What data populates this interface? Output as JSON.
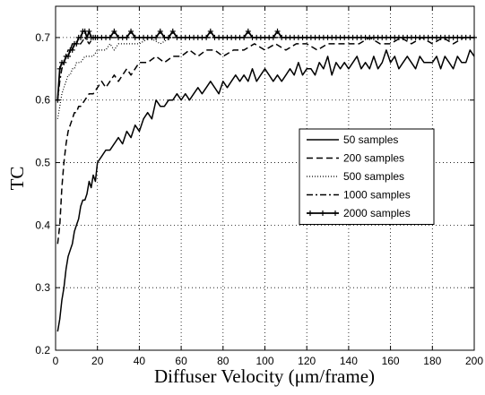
{
  "chart_data": {
    "type": "line",
    "title": "",
    "xlabel": "Diffuser Velocity (μm/frame)",
    "ylabel": "TC",
    "xlim": [
      0,
      200
    ],
    "ylim": [
      0.2,
      0.75
    ],
    "xticks": [
      "0",
      "20",
      "40",
      "60",
      "80",
      "100",
      "120",
      "140",
      "160",
      "180",
      "200"
    ],
    "yticks": [
      "0.2",
      "0.3",
      "0.4",
      "0.5",
      "0.6",
      "0.7"
    ],
    "grid": true,
    "legend_position": "right-center",
    "series": [
      {
        "name": "50 samples",
        "style": "solid",
        "x": [
          1,
          2,
          3,
          4,
          5,
          6,
          7,
          8,
          9,
          10,
          11,
          12,
          13,
          14,
          15,
          16,
          17,
          18,
          19,
          20,
          22,
          24,
          26,
          28,
          30,
          32,
          34,
          36,
          38,
          40,
          42,
          44,
          46,
          48,
          50,
          52,
          54,
          56,
          58,
          60,
          62,
          64,
          66,
          68,
          70,
          72,
          74,
          76,
          78,
          80,
          82,
          84,
          86,
          88,
          90,
          92,
          94,
          96,
          98,
          100,
          102,
          104,
          106,
          108,
          110,
          112,
          114,
          116,
          118,
          120,
          122,
          124,
          126,
          128,
          130,
          132,
          134,
          136,
          138,
          140,
          142,
          144,
          146,
          148,
          150,
          152,
          154,
          156,
          158,
          160,
          162,
          164,
          166,
          168,
          170,
          172,
          174,
          176,
          178,
          180,
          182,
          184,
          186,
          188,
          190,
          192,
          194,
          196,
          198,
          200
        ],
        "y": [
          0.23,
          0.25,
          0.28,
          0.3,
          0.33,
          0.35,
          0.36,
          0.37,
          0.39,
          0.4,
          0.41,
          0.43,
          0.44,
          0.44,
          0.45,
          0.47,
          0.46,
          0.48,
          0.47,
          0.5,
          0.51,
          0.52,
          0.52,
          0.53,
          0.54,
          0.53,
          0.55,
          0.54,
          0.56,
          0.55,
          0.57,
          0.58,
          0.57,
          0.6,
          0.59,
          0.59,
          0.6,
          0.6,
          0.61,
          0.6,
          0.61,
          0.6,
          0.61,
          0.62,
          0.61,
          0.62,
          0.63,
          0.62,
          0.61,
          0.63,
          0.62,
          0.63,
          0.64,
          0.63,
          0.64,
          0.63,
          0.65,
          0.63,
          0.64,
          0.65,
          0.64,
          0.63,
          0.64,
          0.63,
          0.64,
          0.65,
          0.64,
          0.66,
          0.64,
          0.65,
          0.65,
          0.64,
          0.66,
          0.65,
          0.67,
          0.64,
          0.66,
          0.65,
          0.66,
          0.65,
          0.66,
          0.67,
          0.65,
          0.66,
          0.65,
          0.67,
          0.65,
          0.66,
          0.68,
          0.66,
          0.67,
          0.65,
          0.66,
          0.67,
          0.66,
          0.65,
          0.67,
          0.66,
          0.66,
          0.66,
          0.67,
          0.65,
          0.67,
          0.66,
          0.65,
          0.67,
          0.66,
          0.66,
          0.68,
          0.67
        ]
      },
      {
        "name": "200 samples",
        "style": "dashed",
        "x": [
          1,
          2,
          3,
          4,
          5,
          6,
          7,
          8,
          9,
          10,
          11,
          12,
          14,
          16,
          18,
          20,
          22,
          24,
          26,
          28,
          30,
          32,
          34,
          36,
          38,
          40,
          44,
          48,
          52,
          56,
          60,
          64,
          68,
          72,
          76,
          80,
          85,
          90,
          95,
          100,
          105,
          110,
          115,
          120,
          125,
          130,
          135,
          140,
          145,
          150,
          155,
          160,
          165,
          170,
          175,
          180,
          185,
          190,
          195,
          200
        ],
        "y": [
          0.37,
          0.4,
          0.46,
          0.5,
          0.53,
          0.55,
          0.56,
          0.57,
          0.58,
          0.58,
          0.59,
          0.59,
          0.6,
          0.61,
          0.61,
          0.62,
          0.63,
          0.62,
          0.63,
          0.64,
          0.63,
          0.64,
          0.65,
          0.64,
          0.65,
          0.66,
          0.66,
          0.67,
          0.66,
          0.67,
          0.67,
          0.68,
          0.67,
          0.68,
          0.68,
          0.67,
          0.68,
          0.68,
          0.69,
          0.68,
          0.69,
          0.68,
          0.69,
          0.69,
          0.68,
          0.69,
          0.69,
          0.69,
          0.69,
          0.7,
          0.69,
          0.69,
          0.7,
          0.69,
          0.7,
          0.69,
          0.7,
          0.69,
          0.7,
          0.7
        ]
      },
      {
        "name": "500 samples",
        "style": "dotted",
        "x": [
          1,
          2,
          3,
          4,
          5,
          6,
          7,
          8,
          9,
          10,
          12,
          14,
          16,
          18,
          20,
          22,
          24,
          26,
          28,
          30,
          35,
          40,
          45,
          50,
          55,
          60,
          70,
          80,
          90,
          100,
          110,
          120,
          130,
          140,
          150,
          160,
          170,
          180,
          190,
          200
        ],
        "y": [
          0.57,
          0.59,
          0.61,
          0.62,
          0.63,
          0.64,
          0.64,
          0.65,
          0.65,
          0.66,
          0.66,
          0.67,
          0.67,
          0.67,
          0.68,
          0.68,
          0.68,
          0.69,
          0.68,
          0.69,
          0.69,
          0.69,
          0.7,
          0.69,
          0.7,
          0.7,
          0.7,
          0.7,
          0.7,
          0.7,
          0.7,
          0.7,
          0.7,
          0.7,
          0.7,
          0.7,
          0.7,
          0.7,
          0.7,
          0.7
        ]
      },
      {
        "name": "1000 samples",
        "style": "dashdot",
        "x": [
          1,
          2,
          3,
          4,
          5,
          6,
          7,
          8,
          9,
          10,
          12,
          14,
          16,
          18,
          20,
          22,
          24,
          26,
          28,
          30,
          35,
          40,
          45,
          50,
          55,
          60,
          70,
          80,
          90,
          100,
          110,
          120,
          130,
          140,
          150,
          160,
          170,
          180,
          190,
          200
        ],
        "y": [
          0.6,
          0.63,
          0.65,
          0.66,
          0.67,
          0.68,
          0.68,
          0.69,
          0.69,
          0.69,
          0.69,
          0.7,
          0.69,
          0.7,
          0.7,
          0.7,
          0.7,
          0.7,
          0.7,
          0.7,
          0.7,
          0.7,
          0.7,
          0.7,
          0.7,
          0.7,
          0.7,
          0.7,
          0.7,
          0.7,
          0.7,
          0.7,
          0.7,
          0.7,
          0.7,
          0.7,
          0.7,
          0.7,
          0.7,
          0.7
        ]
      },
      {
        "name": "2000 samples",
        "style": "solid-plus",
        "x": [
          1,
          2,
          3,
          4,
          5,
          6,
          7,
          8,
          9,
          10,
          11,
          12,
          13,
          14,
          15,
          16,
          17,
          18,
          19,
          20,
          22,
          24,
          26,
          28,
          30,
          32,
          34,
          36,
          38,
          40,
          42,
          44,
          46,
          48,
          50,
          52,
          54,
          56,
          58,
          60,
          62,
          64,
          66,
          68,
          70,
          72,
          74,
          76,
          78,
          80,
          82,
          84,
          86,
          88,
          90,
          92,
          94,
          96,
          98,
          100,
          102,
          104,
          106,
          108,
          110,
          112,
          114,
          116,
          118,
          120,
          122,
          124,
          126,
          128,
          130,
          132,
          134,
          136,
          138,
          140,
          142,
          144,
          146,
          148,
          150,
          152,
          154,
          156,
          158,
          160,
          162,
          164,
          166,
          168,
          170,
          172,
          174,
          176,
          178,
          180,
          182,
          184,
          186,
          188,
          190,
          192,
          194,
          196,
          198,
          200
        ],
        "y": [
          0.6,
          0.65,
          0.66,
          0.66,
          0.67,
          0.67,
          0.68,
          0.68,
          0.69,
          0.69,
          0.7,
          0.7,
          0.71,
          0.71,
          0.7,
          0.71,
          0.7,
          0.7,
          0.7,
          0.7,
          0.7,
          0.7,
          0.7,
          0.71,
          0.7,
          0.7,
          0.7,
          0.71,
          0.7,
          0.7,
          0.7,
          0.7,
          0.7,
          0.7,
          0.71,
          0.7,
          0.7,
          0.71,
          0.7,
          0.7,
          0.7,
          0.7,
          0.7,
          0.7,
          0.7,
          0.7,
          0.71,
          0.7,
          0.7,
          0.7,
          0.7,
          0.7,
          0.7,
          0.7,
          0.7,
          0.71,
          0.7,
          0.7,
          0.7,
          0.7,
          0.7,
          0.7,
          0.71,
          0.7,
          0.7,
          0.7,
          0.7,
          0.7,
          0.7,
          0.7,
          0.7,
          0.7,
          0.7,
          0.7,
          0.7,
          0.7,
          0.7,
          0.7,
          0.7,
          0.7,
          0.7,
          0.7,
          0.7,
          0.7,
          0.7,
          0.7,
          0.7,
          0.7,
          0.7,
          0.7,
          0.7,
          0.7,
          0.7,
          0.7,
          0.7,
          0.7,
          0.7,
          0.7,
          0.7,
          0.7,
          0.7,
          0.7,
          0.7,
          0.7,
          0.7,
          0.7,
          0.7,
          0.7,
          0.7,
          0.7
        ]
      }
    ]
  }
}
